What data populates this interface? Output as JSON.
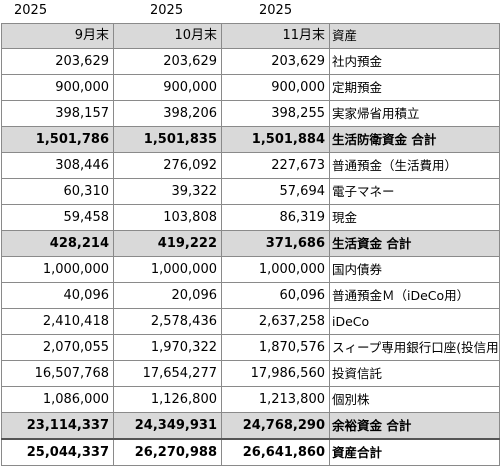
{
  "years": [
    "2025",
    "2025",
    "2025"
  ],
  "header": {
    "months": [
      "9月末",
      "10月末",
      "11月末"
    ],
    "label": "資産"
  },
  "rows": [
    {
      "type": "item",
      "values": [
        "203,629",
        "203,629",
        "203,629"
      ],
      "label": "社内預金"
    },
    {
      "type": "item",
      "values": [
        "900,000",
        "900,000",
        "900,000"
      ],
      "label": "定期預金"
    },
    {
      "type": "item",
      "values": [
        "398,157",
        "398,206",
        "398,255"
      ],
      "label": "実家帰省用積立"
    },
    {
      "type": "subtotal",
      "values": [
        "1,501,786",
        "1,501,835",
        "1,501,884"
      ],
      "label": "生活防衛資金 合計"
    },
    {
      "type": "item",
      "values": [
        "308,446",
        "276,092",
        "227,673"
      ],
      "label": "普通預金（生活費用）"
    },
    {
      "type": "item",
      "values": [
        "60,310",
        "39,322",
        "57,694"
      ],
      "label": "電子マネー"
    },
    {
      "type": "item",
      "values": [
        "59,458",
        "103,808",
        "86,319"
      ],
      "label": "現金"
    },
    {
      "type": "subtotal",
      "values": [
        "428,214",
        "419,222",
        "371,686"
      ],
      "label": "生活資金 合計"
    },
    {
      "type": "item",
      "values": [
        "1,000,000",
        "1,000,000",
        "1,000,000"
      ],
      "label": "国内債券"
    },
    {
      "type": "item",
      "values": [
        "40,096",
        "20,096",
        "60,096"
      ],
      "label": "普通預金Ｍ（iDeCo用）"
    },
    {
      "type": "item",
      "values": [
        "2,410,418",
        "2,578,436",
        "2,637,258"
      ],
      "label": "iDeCo"
    },
    {
      "type": "item",
      "values": [
        "2,070,055",
        "1,970,322",
        "1,870,576"
      ],
      "label": "スィープ専用銀行口座(投信用)"
    },
    {
      "type": "item",
      "values": [
        "16,507,768",
        "17,654,277",
        "17,986,560"
      ],
      "label": "投資信託"
    },
    {
      "type": "item",
      "values": [
        "1,086,000",
        "1,126,800",
        "1,213,800"
      ],
      "label": "個別株"
    },
    {
      "type": "subtotal",
      "values": [
        "23,114,337",
        "24,349,931",
        "24,768,290"
      ],
      "label": "余裕資金 合計"
    },
    {
      "type": "total",
      "values": [
        "25,044,337",
        "26,270,988",
        "26,641,860"
      ],
      "label": "資産合計"
    }
  ]
}
